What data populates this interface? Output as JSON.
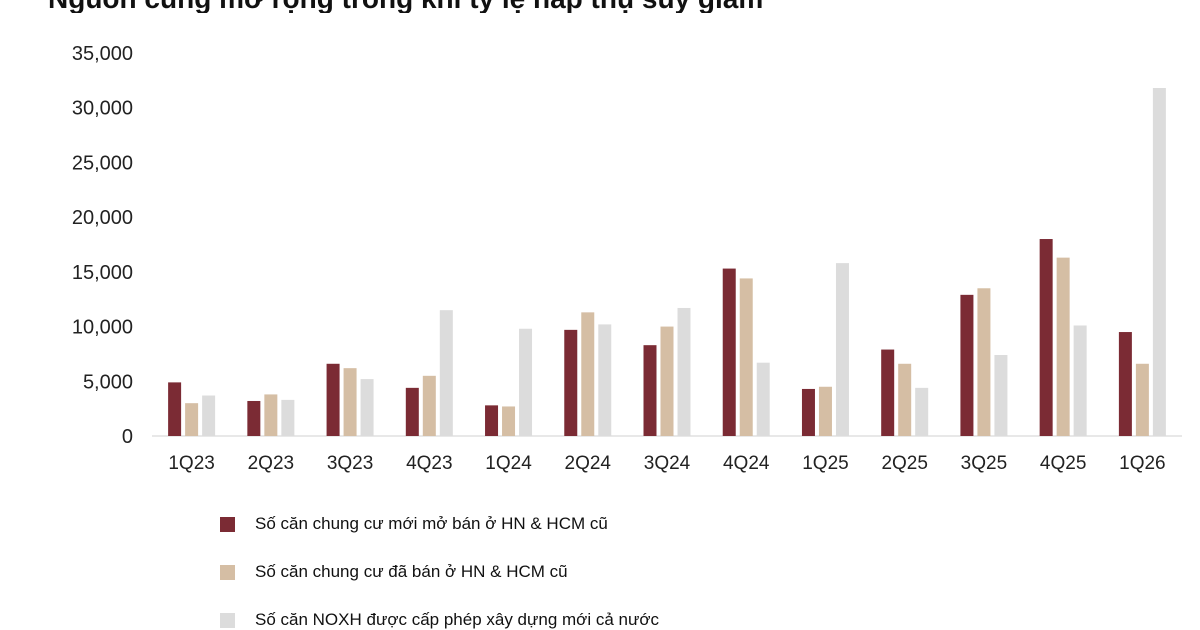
{
  "chart_data": {
    "type": "bar",
    "title": "Nguồn cung mở rộng trong khi tỷ lệ hấp thụ suy giảm",
    "xlabel": "",
    "ylabel": "",
    "ylim": [
      0,
      35000
    ],
    "y_ticks": [
      "35,000",
      "30,000",
      "25,000",
      "20,000",
      "15,000",
      "10,000",
      "5,000",
      "0"
    ],
    "y_tick_values": [
      35000,
      30000,
      25000,
      20000,
      15000,
      10000,
      5000,
      0
    ],
    "grid": false,
    "legend_position": "bottom",
    "categories": [
      "1Q23",
      "2Q23",
      "3Q23",
      "4Q23",
      "1Q24",
      "2Q24",
      "3Q24",
      "4Q24",
      "1Q25",
      "2Q25",
      "3Q25",
      "4Q25",
      "1Q26"
    ],
    "series": [
      {
        "name": "Số căn chung cư mới mở bán ở HN & HCM cũ",
        "color": "#7b2b34",
        "values": [
          4900,
          3200,
          6600,
          4400,
          2800,
          9700,
          8300,
          15300,
          4300,
          7900,
          12900,
          18000,
          9500
        ]
      },
      {
        "name": "Số căn chung cư đã bán ở HN & HCM cũ",
        "color": "#d5bea4",
        "values": [
          3000,
          3800,
          6200,
          5500,
          2700,
          11300,
          10000,
          14400,
          4500,
          6600,
          13500,
          16300,
          6600
        ]
      },
      {
        "name": "Số căn NOXH được cấp phép xây dựng mới cả nước",
        "color": "#dcdcdc",
        "values": [
          3700,
          3300,
          5200,
          11500,
          9800,
          10200,
          11700,
          6700,
          15800,
          4400,
          7400,
          10100,
          31800
        ]
      }
    ]
  }
}
